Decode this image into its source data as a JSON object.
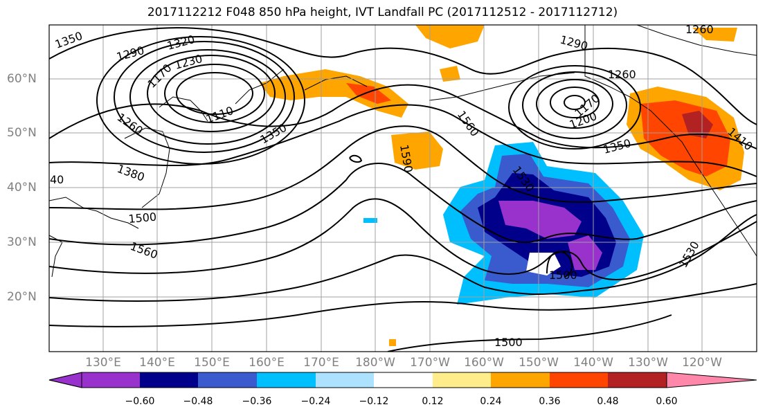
{
  "title": "2017112212 F048 850 hPa height, IVT Landfall PC (2017112512 - 2017112712)",
  "lat_labels": [
    "60°N",
    "50°N",
    "40°N",
    "30°N",
    "20°N"
  ],
  "lon_labels": [
    "130°E",
    "140°E",
    "150°E",
    "160°E",
    "170°E",
    "180°W",
    "170°W",
    "160°W",
    "150°W",
    "140°W",
    "130°W",
    "120°W"
  ],
  "colorbar": {
    "colors": [
      "#9932CC",
      "#00008B",
      "#3A5BCD",
      "#00BFFF",
      "#ADE2FF",
      "#FFFFFF",
      "#FFEC8B",
      "#FFA500",
      "#FF4500",
      "#B22222",
      "#FF88AA"
    ],
    "ticks": [
      "−0.60",
      "−0.48",
      "−0.36",
      "−0.24",
      "−0.12",
      "0.12",
      "0.24",
      "0.36",
      "0.48",
      "0.60"
    ]
  },
  "contour_labels": [
    "1350",
    "1290",
    "1320",
    "1230",
    "1170",
    "1110",
    "1260",
    "1350",
    "1380",
    "1500",
    "1560",
    "1590",
    "1560",
    "1530",
    "1500",
    "1500",
    "1290",
    "1260",
    "1170",
    "1200",
    "1350",
    "1410",
    "1530",
    "1260",
    "40"
  ]
}
